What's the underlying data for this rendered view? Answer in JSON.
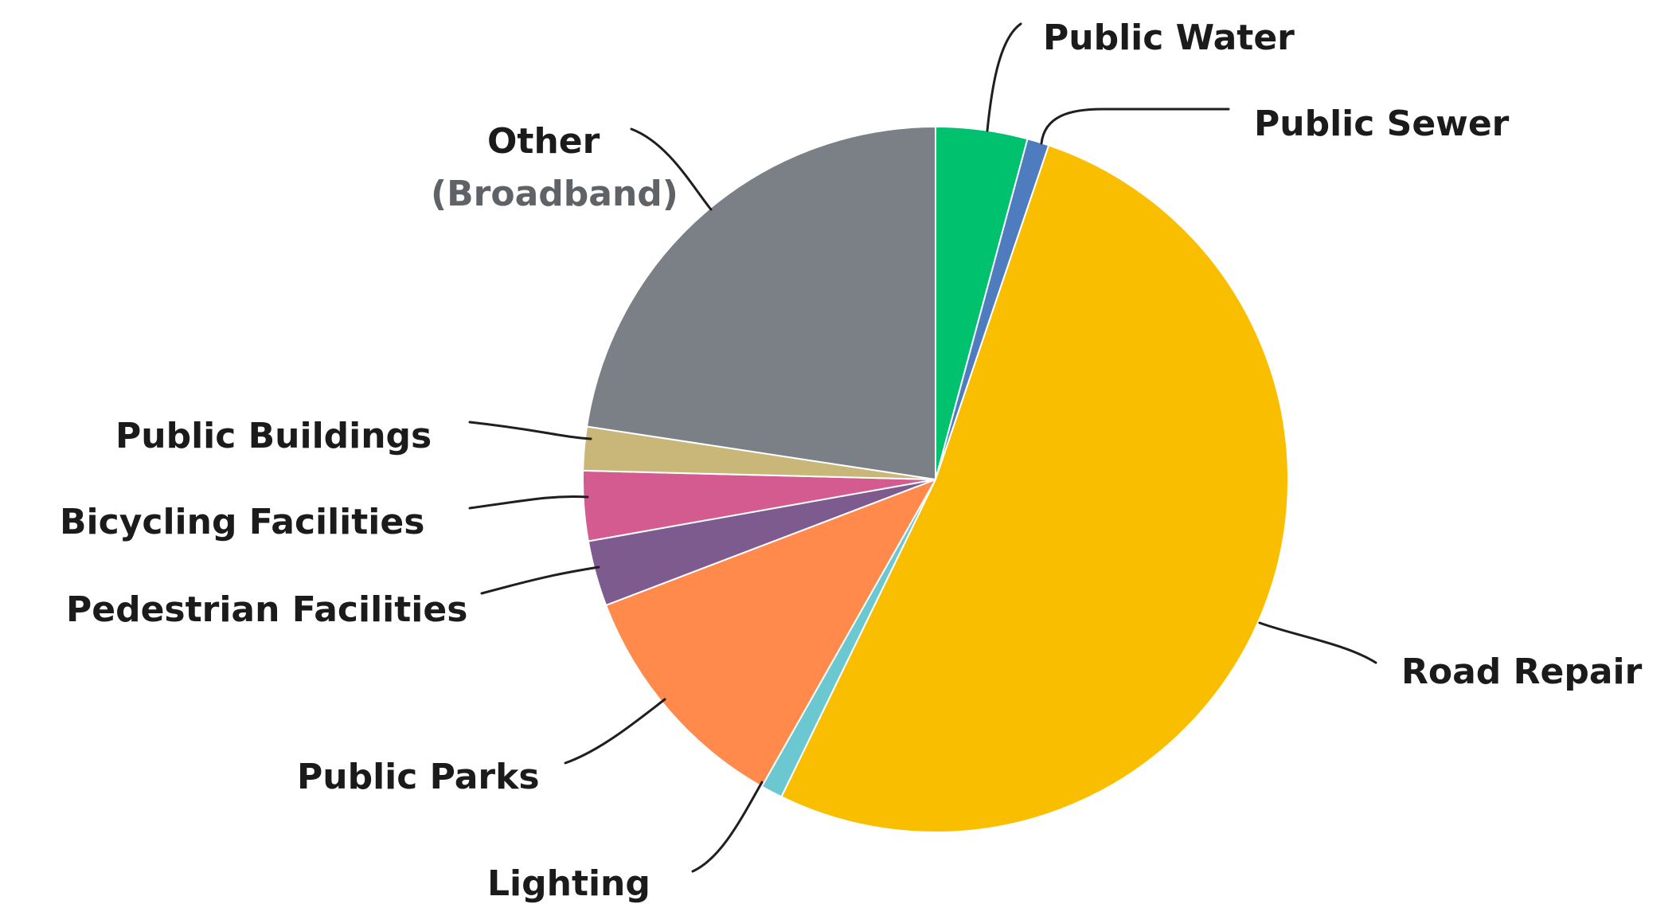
{
  "chart_data": {
    "type": "pie",
    "title": "",
    "start_angle_deg": 0,
    "direction": "clockwise",
    "slices": [
      {
        "key": "public_water",
        "label": "Public Water",
        "value": 4.2,
        "color": "#00C16E"
      },
      {
        "key": "public_sewer",
        "label": "Public Sewer",
        "value": 1.0,
        "color": "#4F7CBF"
      },
      {
        "key": "road_repair",
        "label": "Road Repair",
        "value": 52.0,
        "color": "#F9BE00"
      },
      {
        "key": "lighting",
        "label": "Lighting",
        "value": 1.0,
        "color": "#6CC8D0"
      },
      {
        "key": "public_parks",
        "label": "Public Parks",
        "value": 11.0,
        "color": "#FF8A4C"
      },
      {
        "key": "pedestrian_facilities",
        "label": "Pedestrian Facilities",
        "value": 3.0,
        "color": "#7E5B8F"
      },
      {
        "key": "bicycling_facilities",
        "label": "Bicycling Facilities",
        "value": 3.2,
        "color": "#D35B8F"
      },
      {
        "key": "public_buildings",
        "label": "Public Buildings",
        "value": 2.0,
        "color": "#C9B77A"
      },
      {
        "key": "other_broadband",
        "label": "Other",
        "sublabel": "(Broadband)",
        "value": 22.6,
        "color": "#7A8085"
      }
    ]
  }
}
